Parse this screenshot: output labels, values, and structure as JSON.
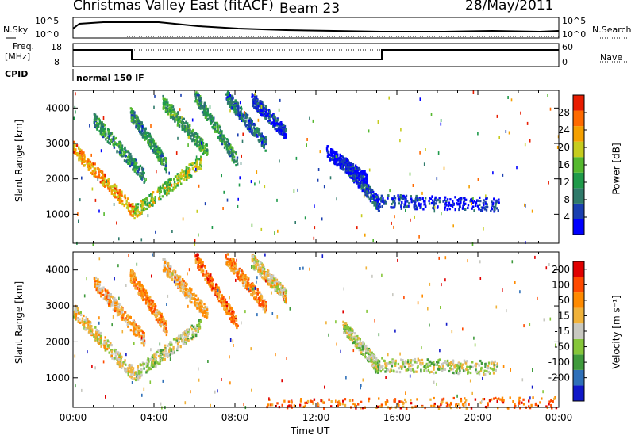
{
  "header": {
    "station_title": "Christmas Valley East (fitACF)",
    "beam_title": "Beam 23",
    "date": "28/May/2011"
  },
  "status_panels": {
    "nsky_label": "N.Sky",
    "nsky_ticks": [
      "10^5",
      "10^0"
    ],
    "nsearch_label": "N.Search",
    "nsearch_ticks": [
      "10^5",
      "10^0"
    ],
    "freq_label_line1": "Freq.",
    "freq_label_line2": "[MHz]",
    "freq_ticks": [
      "18",
      "8"
    ],
    "nave_label": "Nave",
    "nave_ticks": [
      "60",
      "0"
    ],
    "cpid_label": "CPID",
    "cpid_value": "normal 150 IF"
  },
  "chart_data": [
    {
      "type": "heatmap",
      "name": "power",
      "ylabel": "Slant Range [km]",
      "xlabel": "",
      "yticks": [
        "1000",
        "2000",
        "3000",
        "4000"
      ],
      "yrange_km": [
        180,
        4500
      ],
      "xrange_hours": [
        0,
        24
      ],
      "colorbar_label": "Power [dB]",
      "colorbar_ticks": [
        "28",
        "24",
        "20",
        "16",
        "12",
        "8",
        "4"
      ],
      "colorbar_colors": [
        "#0000ff",
        "#1a3fb0",
        "#2f7a6a",
        "#1f9a4a",
        "#55b82e",
        "#c6cc1e",
        "#f5a000",
        "#ff6a00",
        "#e81c00"
      ],
      "bands": [
        {
          "t0": 0.0,
          "t1": 3.0,
          "r0": 2900,
          "r1": 1100,
          "level": 0.75
        },
        {
          "t0": 3.0,
          "t1": 6.3,
          "r0": 1100,
          "r1": 2500,
          "level": 0.55
        },
        {
          "t0": 1.0,
          "t1": 3.5,
          "r0": 3700,
          "r1": 2100,
          "level": 0.35
        },
        {
          "t0": 2.8,
          "t1": 4.6,
          "r0": 3900,
          "r1": 2400,
          "level": 0.35
        },
        {
          "t0": 4.4,
          "t1": 6.6,
          "r0": 4200,
          "r1": 2800,
          "level": 0.4
        },
        {
          "t0": 6.0,
          "t1": 8.1,
          "r0": 4400,
          "r1": 2500,
          "level": 0.35
        },
        {
          "t0": 7.5,
          "t1": 9.5,
          "r0": 4400,
          "r1": 3000,
          "level": 0.25
        },
        {
          "t0": 8.8,
          "t1": 10.5,
          "r0": 4300,
          "r1": 3300,
          "level": 0.15
        },
        {
          "t0": 13.3,
          "t1": 15.1,
          "r0": 2500,
          "r1": 1300,
          "level": 0.12
        },
        {
          "t0": 15.1,
          "t1": 21.0,
          "r0": 1400,
          "r1": 1300,
          "level": 0.1
        },
        {
          "t0": 12.5,
          "t1": 14.5,
          "r0": 2800,
          "r1": 2000,
          "level": 0.08
        }
      ]
    },
    {
      "type": "heatmap",
      "name": "velocity",
      "ylabel": "Slant Range [km]",
      "xlabel": "Time UT",
      "xticks": [
        "00:00",
        "04:00",
        "08:00",
        "12:00",
        "16:00",
        "20:00",
        "00:00"
      ],
      "yticks": [
        "1000",
        "2000",
        "3000",
        "4000"
      ],
      "yrange_km": [
        180,
        4500
      ],
      "xrange_hours": [
        0,
        24
      ],
      "colorbar_label": "Velocity [m s⁻¹]",
      "colorbar_ticks": [
        "200",
        "100",
        "50",
        "15",
        "-15",
        "-50",
        "-100",
        "-200"
      ],
      "colorbar_colors": [
        "#1018c8",
        "#2f70b8",
        "#3f9a3c",
        "#86c63a",
        "#c8c8c0",
        "#f0b23a",
        "#ff8a00",
        "#ff4a00",
        "#e00000"
      ],
      "bands": [
        {
          "t0": 0.0,
          "t1": 3.0,
          "r0": 2900,
          "r1": 1100,
          "level": 0.55
        },
        {
          "t0": 3.0,
          "t1": 6.3,
          "r0": 1100,
          "r1": 2500,
          "level": 0.45
        },
        {
          "t0": 1.0,
          "t1": 3.5,
          "r0": 3700,
          "r1": 2100,
          "level": 0.65
        },
        {
          "t0": 2.8,
          "t1": 4.6,
          "r0": 3900,
          "r1": 2400,
          "level": 0.7
        },
        {
          "t0": 4.4,
          "t1": 6.6,
          "r0": 4200,
          "r1": 2800,
          "level": 0.62
        },
        {
          "t0": 6.0,
          "t1": 8.1,
          "r0": 4400,
          "r1": 2500,
          "level": 0.75
        },
        {
          "t0": 7.5,
          "t1": 9.5,
          "r0": 4400,
          "r1": 3000,
          "level": 0.7
        },
        {
          "t0": 8.8,
          "t1": 10.5,
          "r0": 4300,
          "r1": 3300,
          "level": 0.55
        },
        {
          "t0": 13.3,
          "t1": 15.1,
          "r0": 2500,
          "r1": 1300,
          "level": 0.45
        },
        {
          "t0": 15.1,
          "t1": 21.0,
          "r0": 1400,
          "r1": 1300,
          "level": 0.45
        },
        {
          "t0": 9.5,
          "t1": 24.0,
          "r0": 250,
          "r1": 300,
          "level": 0.78
        }
      ]
    }
  ]
}
